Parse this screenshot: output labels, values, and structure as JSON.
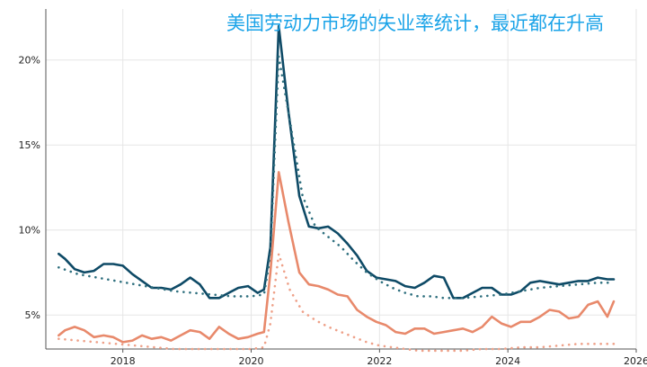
{
  "chart_data": {
    "type": "line",
    "title": "美国劳动力市场的失业率统计，最近都在升高",
    "xlabel": "",
    "ylabel": "",
    "xlim": [
      2016.8,
      2026.0
    ],
    "ylim": [
      3.0,
      23.0
    ],
    "x_ticks": [
      2018,
      2020,
      2022,
      2024,
      2026
    ],
    "y_ticks": [
      5,
      10,
      15,
      20
    ],
    "y_tick_labels": [
      "5%",
      "10%",
      "15%",
      "20%"
    ],
    "grid": true,
    "colors": {
      "dark": "#0e4a66",
      "dark_dotted": "#2e6f7e",
      "orange": "#e8896b",
      "orange_dotted": "#eea088",
      "title": "#1aa3e8"
    },
    "series": [
      {
        "style": "solid",
        "color": "#0e4a66",
        "x": [
          2017.0,
          2017.1,
          2017.25,
          2017.4,
          2017.55,
          2017.7,
          2017.85,
          2018.0,
          2018.15,
          2018.3,
          2018.45,
          2018.6,
          2018.75,
          2018.9,
          2019.05,
          2019.2,
          2019.35,
          2019.5,
          2019.65,
          2019.8,
          2019.95,
          2020.1,
          2020.2,
          2020.3,
          2020.43,
          2020.58,
          2020.75,
          2020.9,
          2021.05,
          2021.2,
          2021.35,
          2021.5,
          2021.65,
          2021.8,
          2021.95,
          2022.1,
          2022.25,
          2022.4,
          2022.55,
          2022.7,
          2022.85,
          2023.0,
          2023.15,
          2023.3,
          2023.45,
          2023.6,
          2023.75,
          2023.9,
          2024.05,
          2024.2,
          2024.35,
          2024.5,
          2024.65,
          2024.8,
          2024.95,
          2025.1,
          2025.25,
          2025.4,
          2025.55,
          2025.65
        ],
        "values": [
          8.6,
          8.3,
          7.7,
          7.5,
          7.6,
          8.0,
          8.0,
          7.9,
          7.4,
          7.0,
          6.6,
          6.6,
          6.5,
          6.8,
          7.2,
          6.8,
          6.0,
          6.0,
          6.3,
          6.6,
          6.7,
          6.3,
          6.5,
          9.0,
          22.0,
          17.0,
          12.0,
          10.2,
          10.1,
          10.2,
          9.8,
          9.2,
          8.5,
          7.6,
          7.2,
          7.1,
          7.0,
          6.7,
          6.6,
          6.9,
          7.3,
          7.2,
          6.0,
          6.0,
          6.3,
          6.6,
          6.6,
          6.2,
          6.2,
          6.4,
          6.9,
          7.0,
          6.9,
          6.8,
          6.9,
          7.0,
          7.0,
          7.2,
          7.1,
          7.1
        ]
      },
      {
        "style": "dotted",
        "color": "#2e6f7e",
        "x": [
          2017.0,
          2017.3,
          2017.6,
          2017.9,
          2018.2,
          2018.5,
          2018.8,
          2019.1,
          2019.4,
          2019.7,
          2020.0,
          2020.2,
          2020.3,
          2020.43,
          2020.6,
          2020.8,
          2021.0,
          2021.2,
          2021.4,
          2021.6,
          2021.8,
          2022.0,
          2022.2,
          2022.4,
          2022.6,
          2022.8,
          2023.0,
          2023.3,
          2023.6,
          2023.9,
          2024.2,
          2024.5,
          2024.8,
          2025.1,
          2025.4,
          2025.65
        ],
        "values": [
          7.8,
          7.4,
          7.2,
          7.0,
          6.8,
          6.6,
          6.4,
          6.3,
          6.2,
          6.1,
          6.1,
          6.2,
          8.5,
          20.2,
          16.5,
          12.0,
          10.2,
          9.6,
          9.0,
          8.2,
          7.5,
          7.0,
          6.6,
          6.3,
          6.1,
          6.1,
          6.0,
          6.0,
          6.1,
          6.2,
          6.4,
          6.6,
          6.7,
          6.8,
          6.9,
          6.9
        ]
      },
      {
        "style": "solid",
        "color": "#e8896b",
        "x": [
          2017.0,
          2017.1,
          2017.25,
          2017.4,
          2017.55,
          2017.7,
          2017.85,
          2018.0,
          2018.15,
          2018.3,
          2018.45,
          2018.6,
          2018.75,
          2018.9,
          2019.05,
          2019.2,
          2019.35,
          2019.5,
          2019.65,
          2019.8,
          2019.95,
          2020.1,
          2020.2,
          2020.3,
          2020.43,
          2020.58,
          2020.75,
          2020.9,
          2021.05,
          2021.2,
          2021.35,
          2021.5,
          2021.65,
          2021.8,
          2021.95,
          2022.1,
          2022.25,
          2022.4,
          2022.55,
          2022.7,
          2022.85,
          2023.0,
          2023.15,
          2023.3,
          2023.45,
          2023.6,
          2023.75,
          2023.9,
          2024.05,
          2024.2,
          2024.35,
          2024.5,
          2024.65,
          2024.8,
          2024.95,
          2025.1,
          2025.25,
          2025.4,
          2025.55,
          2025.65
        ],
        "values": [
          3.8,
          4.1,
          4.3,
          4.1,
          3.7,
          3.8,
          3.7,
          3.4,
          3.5,
          3.8,
          3.6,
          3.7,
          3.5,
          3.8,
          4.1,
          4.0,
          3.6,
          4.3,
          3.9,
          3.6,
          3.7,
          3.9,
          4.0,
          7.5,
          13.4,
          10.5,
          7.5,
          6.8,
          6.7,
          6.5,
          6.2,
          6.1,
          5.3,
          4.9,
          4.6,
          4.4,
          4.0,
          3.9,
          4.2,
          4.2,
          3.9,
          4.0,
          4.1,
          4.2,
          4.0,
          4.3,
          4.9,
          4.5,
          4.3,
          4.6,
          4.6,
          4.9,
          5.3,
          5.2,
          4.8,
          4.9,
          5.6,
          5.8,
          4.9,
          5.8
        ]
      },
      {
        "style": "dotted",
        "color": "#eea088",
        "x": [
          2017.0,
          2017.3,
          2017.6,
          2017.9,
          2018.2,
          2018.5,
          2018.8,
          2019.1,
          2019.4,
          2019.7,
          2020.0,
          2020.2,
          2020.3,
          2020.43,
          2020.6,
          2020.8,
          2021.0,
          2021.2,
          2021.4,
          2021.6,
          2021.8,
          2022.0,
          2022.2,
          2022.4,
          2022.6,
          2022.8,
          2023.0,
          2023.3,
          2023.6,
          2023.9,
          2024.2,
          2024.5,
          2024.8,
          2025.1,
          2025.4,
          2025.65
        ],
        "values": [
          3.6,
          3.5,
          3.4,
          3.3,
          3.2,
          3.1,
          3.0,
          3.0,
          3.0,
          3.0,
          3.0,
          3.1,
          4.5,
          8.6,
          6.5,
          5.2,
          4.7,
          4.3,
          4.0,
          3.7,
          3.4,
          3.2,
          3.1,
          3.0,
          2.9,
          2.9,
          2.9,
          2.9,
          3.0,
          3.0,
          3.1,
          3.1,
          3.2,
          3.3,
          3.3,
          3.3
        ]
      }
    ]
  }
}
